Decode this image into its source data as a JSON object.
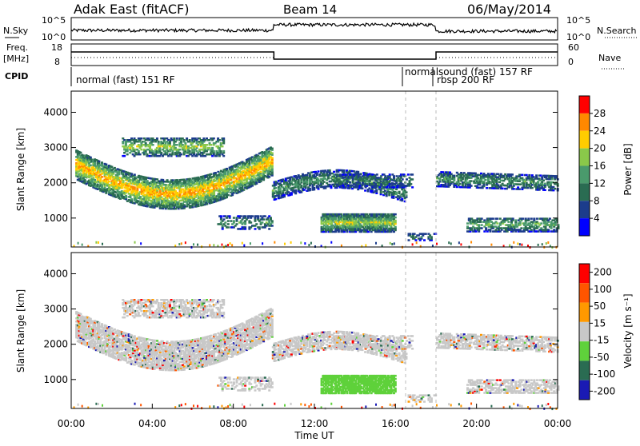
{
  "header": {
    "station": "Adak East (fitACF)",
    "beam": "Beam 14",
    "date": "06/May/2014"
  },
  "aux": {
    "nsky_label": "N.Sky",
    "nsky_ticks": [
      "10^5",
      "10^0"
    ],
    "nsearch_label": "N.Search",
    "nsearch_ticks": [
      "10^5",
      "10^0"
    ],
    "freq_label": "Freq.",
    "freq_unit": "[MHz]",
    "freq_ticks": [
      "18",
      "8"
    ],
    "nave_label": "Nave",
    "nave_ticks": [
      "60",
      "0"
    ],
    "cpid_label": "CPID",
    "cpid_segments": [
      "normal (fast) 151 RF",
      "normalsound (fast) 157 RF",
      "rbsp 200 RF"
    ]
  },
  "chart_data": [
    {
      "type": "heatmap",
      "name": "power",
      "xlabel": "Time UT",
      "ylabel": "Slant Range [km]",
      "x_ticks": [
        "00:00",
        "04:00",
        "08:00",
        "12:00",
        "16:00",
        "20:00",
        "00:00"
      ],
      "xlim_hours": [
        0,
        24
      ],
      "y_ticks": [
        "1000",
        "2000",
        "3000",
        "4000"
      ],
      "ylim": [
        180,
        4600
      ],
      "colorbar_label": "Power [dB]",
      "colorbar_ticks": [
        "4",
        "8",
        "12",
        "16",
        "20",
        "24",
        "28"
      ],
      "colorbar_range": [
        0,
        30
      ],
      "colors": [
        "#0000ff",
        "#1c3c8c",
        "#2a6c52",
        "#4a9a6c",
        "#8ac84a",
        "#ffcc00",
        "#ff8800",
        "#ff0000"
      ]
    },
    {
      "type": "heatmap",
      "name": "velocity",
      "xlabel": "Time UT",
      "ylabel": "Slant Range [km]",
      "x_ticks": [
        "00:00",
        "04:00",
        "08:00",
        "12:00",
        "16:00",
        "20:00",
        "00:00"
      ],
      "xlim_hours": [
        0,
        24
      ],
      "y_ticks": [
        "1000",
        "2000",
        "3000",
        "4000"
      ],
      "ylim": [
        180,
        4600
      ],
      "colorbar_label": "Velocity [m s⁻¹]",
      "colorbar_ticks": [
        "200",
        "100",
        "50",
        "15",
        "-15",
        "-50",
        "-100",
        "-200"
      ],
      "colors": [
        "#1a1ab4",
        "#2a6c52",
        "#5fd13b",
        "#c8c8c8",
        "#ff9900",
        "#ff5500",
        "#ff0000"
      ]
    }
  ]
}
